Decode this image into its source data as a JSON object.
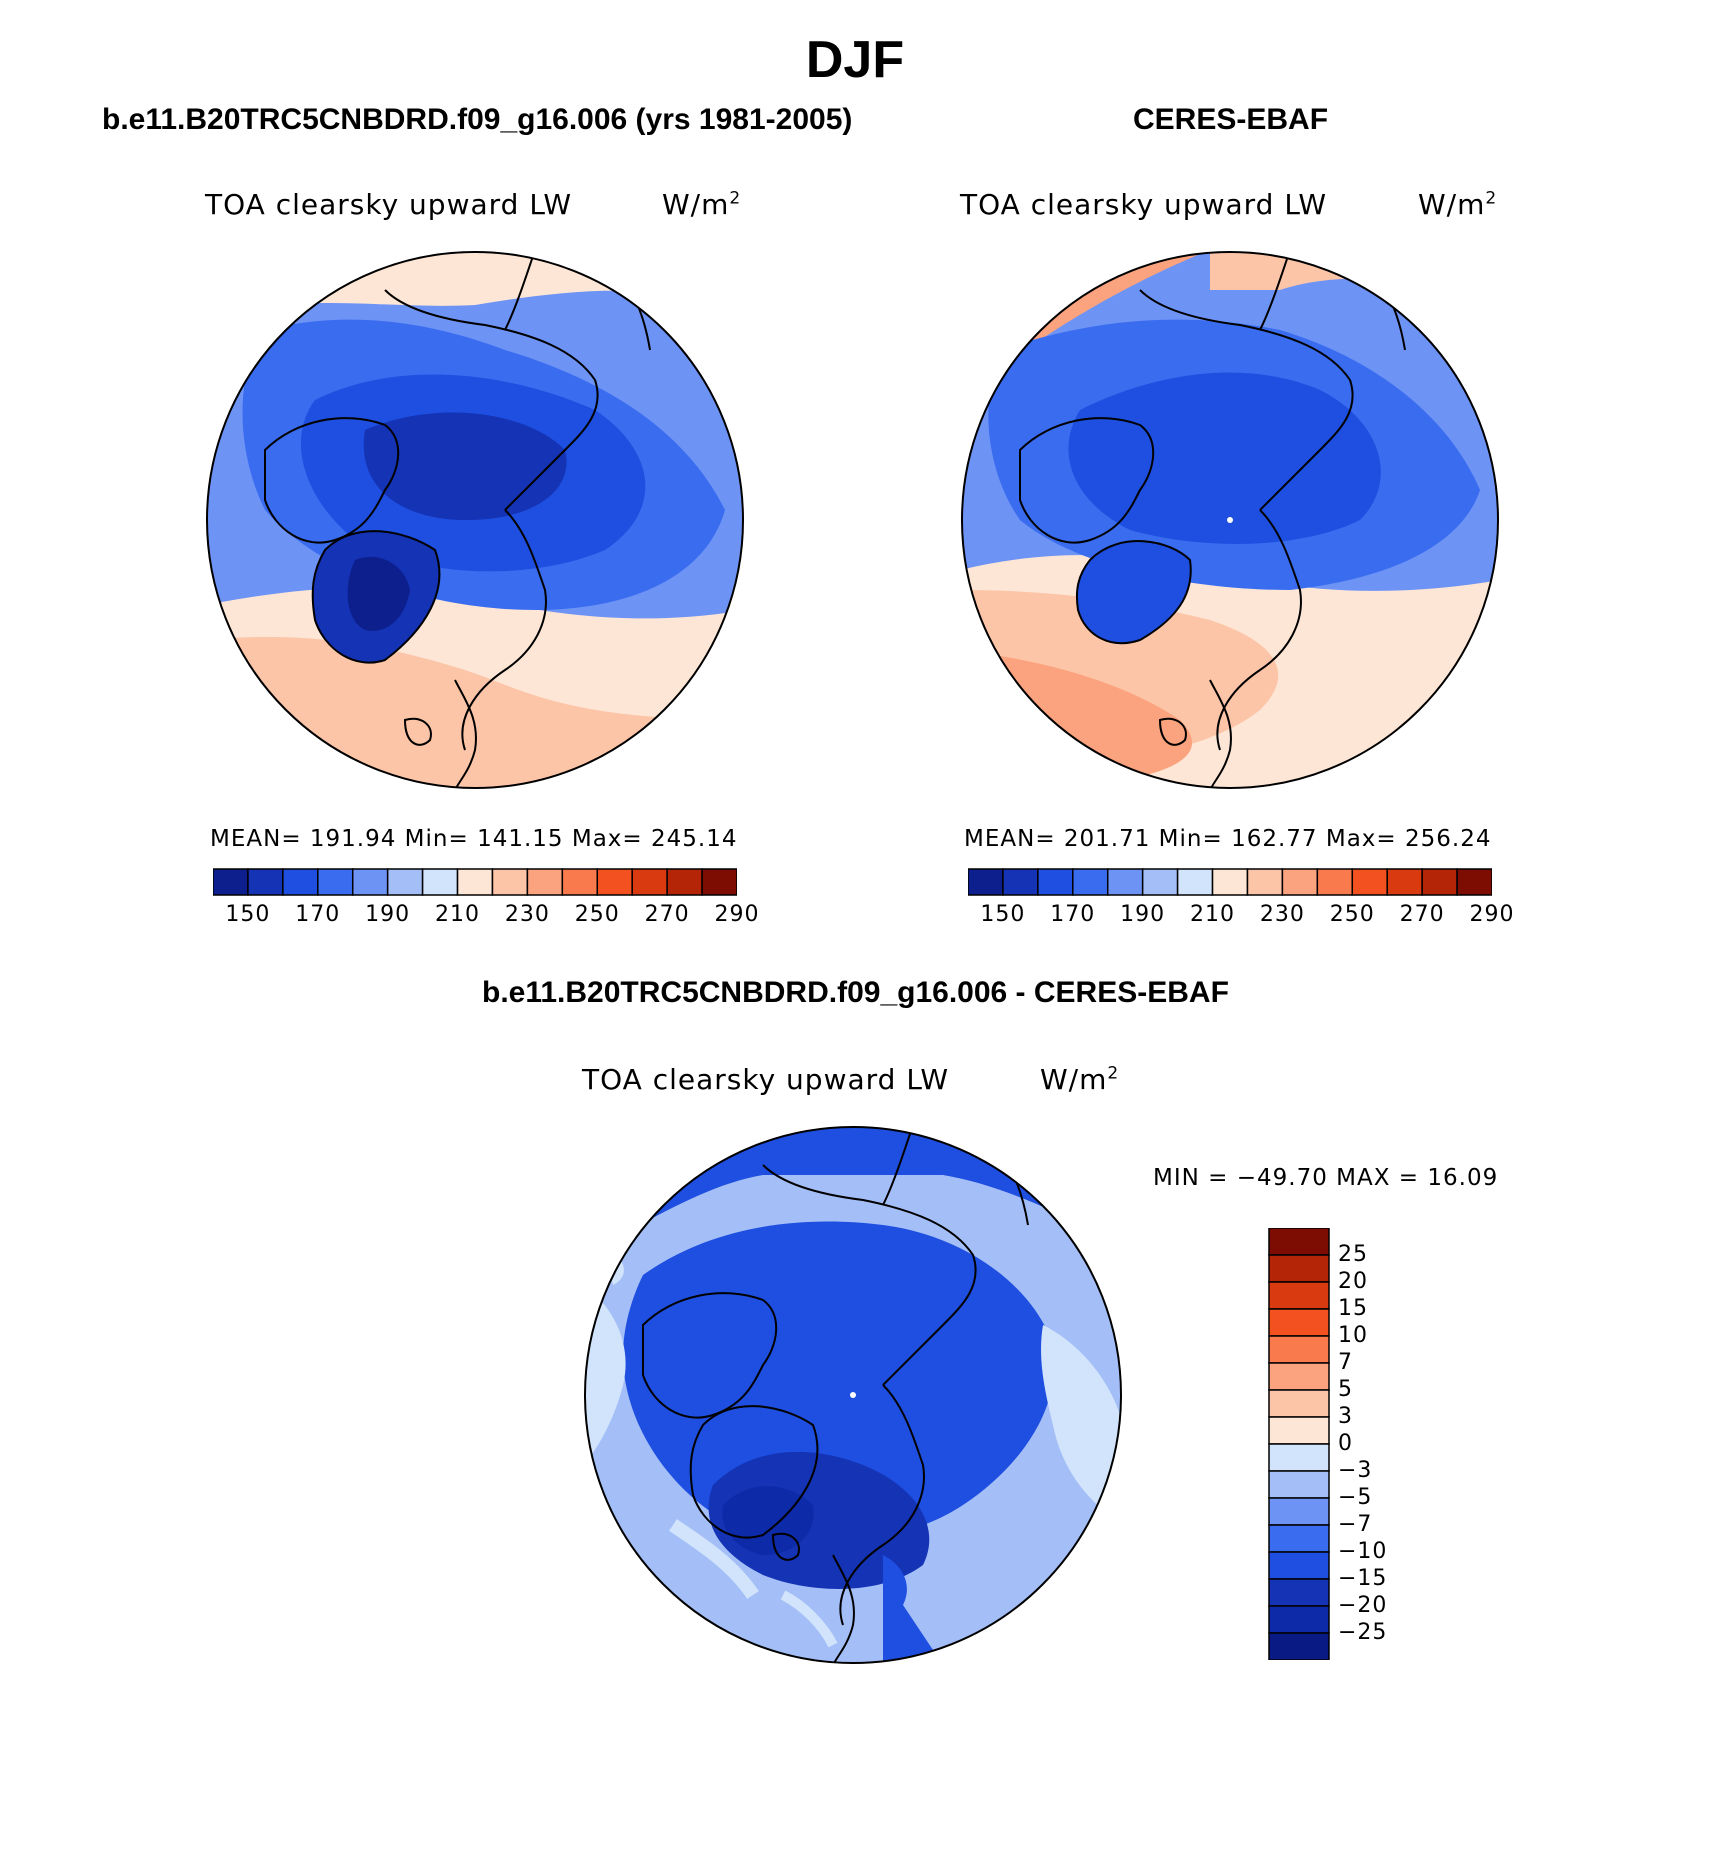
{
  "page": {
    "title": "DJF"
  },
  "panels": {
    "model": {
      "title": "b.e11.B20TRC5CNBDRD.f09_g16.006 (yrs 1981-2005)",
      "variable": "TOA clearsky upward LW",
      "units_base": "W/m",
      "units_exp": "2",
      "stats": "MEAN= 191.94   Min= 141.15   Max= 245.14",
      "colorbar": {
        "labels": [
          "150",
          "170",
          "190",
          "210",
          "230",
          "250",
          "270",
          "290"
        ],
        "colors": [
          "#0d1f8c",
          "#1433b5",
          "#1e4fe0",
          "#3a6cf0",
          "#6d93f5",
          "#a4bff8",
          "#d2e4fb",
          "#fde6d6",
          "#fcc5a8",
          "#fba37e",
          "#f97a4c",
          "#f3511f",
          "#d93a10",
          "#b42508",
          "#7d0c02"
        ]
      }
    },
    "obs": {
      "title": "CERES-EBAF",
      "variable": "TOA clearsky upward LW",
      "units_base": "W/m",
      "units_exp": "2",
      "stats": "MEAN= 201.71   Min= 162.77   Max= 256.24",
      "colorbar": {
        "labels": [
          "150",
          "170",
          "190",
          "210",
          "230",
          "250",
          "270",
          "290"
        ],
        "colors": [
          "#0d1f8c",
          "#1433b5",
          "#1e4fe0",
          "#3a6cf0",
          "#6d93f5",
          "#a4bff8",
          "#d2e4fb",
          "#fde6d6",
          "#fcc5a8",
          "#fba37e",
          "#f97a4c",
          "#f3511f",
          "#d93a10",
          "#b42508",
          "#7d0c02"
        ]
      }
    },
    "diff": {
      "title": "b.e11.B20TRC5CNBDRD.f09_g16.006 - CERES-EBAF",
      "variable": "TOA clearsky upward LW",
      "units_base": "W/m",
      "units_exp": "2",
      "minmax": "MIN = −49.70 MAX =   16.09",
      "colorbar": {
        "labels": [
          "25",
          "20",
          "15",
          "10",
          "7",
          "5",
          "3",
          "0",
          "−3",
          "−5",
          "−7",
          "−10",
          "−15",
          "−20",
          "−25"
        ],
        "colors": [
          "#7d0c02",
          "#b42508",
          "#d93a10",
          "#f3511f",
          "#f97a4c",
          "#fba37e",
          "#fcc5a8",
          "#fde6d6",
          "#d2e4fb",
          "#a4bff8",
          "#6d93f5",
          "#3a6cf0",
          "#1e4fe0",
          "#1433b5",
          "#0d2aa8",
          "#0a1a85"
        ]
      }
    }
  },
  "colors": {
    "land_outline": "#000000",
    "ocean_blue": "#1e4fe0"
  }
}
